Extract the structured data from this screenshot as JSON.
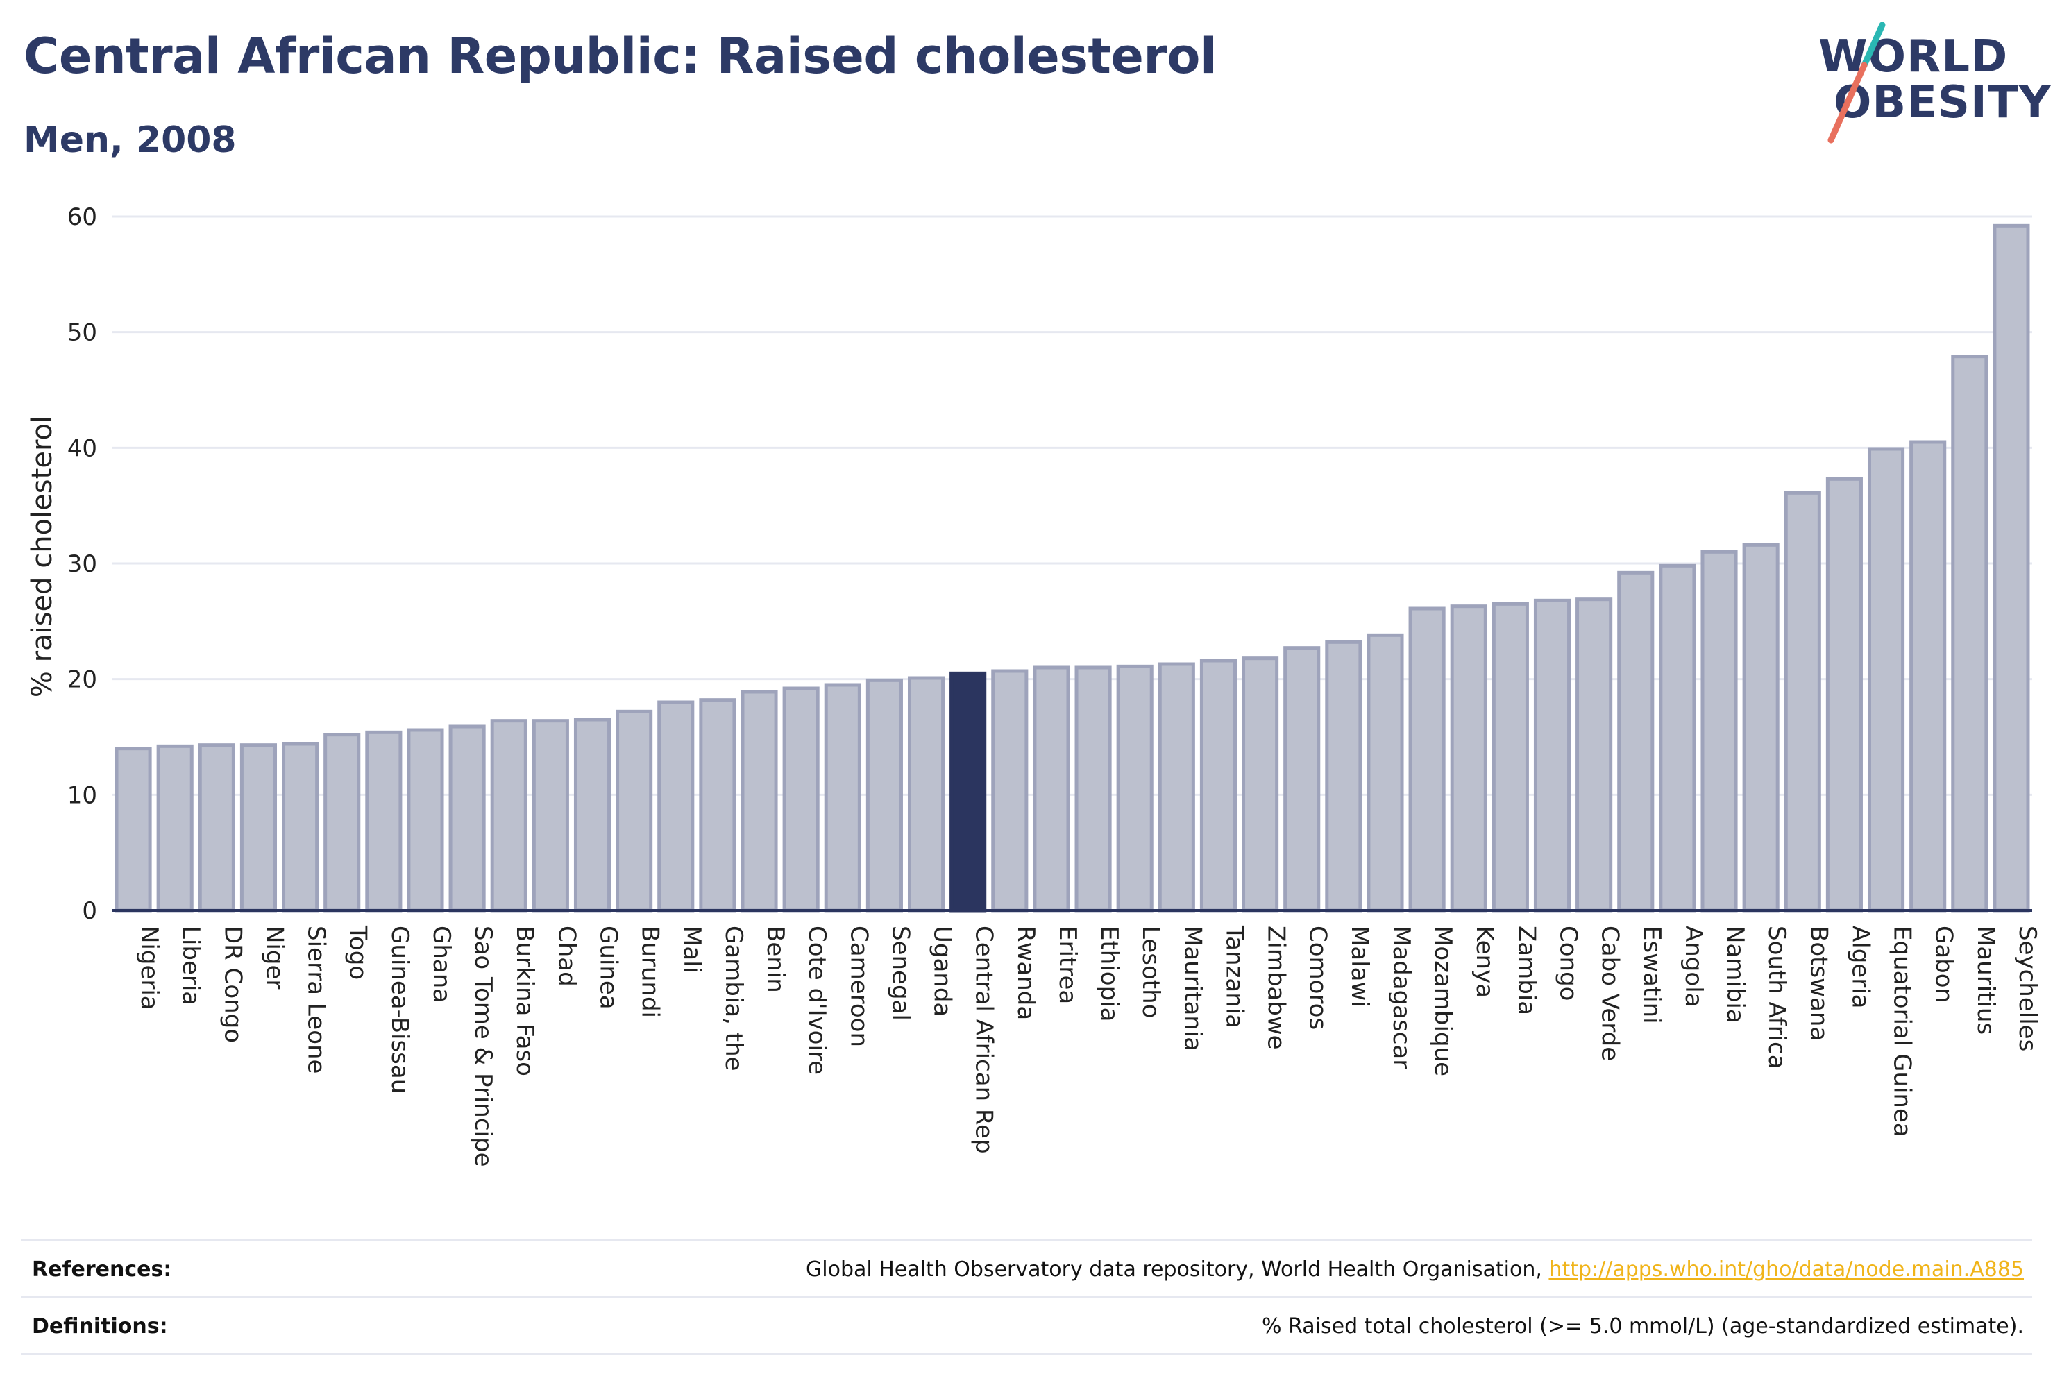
{
  "header": {
    "title": "Central African Republic: Raised cholesterol",
    "subtitle": "Men, 2008"
  },
  "logo": {
    "line1": "WORLD",
    "line2": "OBESITY"
  },
  "colors": {
    "bar": "#bcc0ce",
    "bar_border": "#9ea3bb",
    "highlight": "#2b355f",
    "grid": "#e6e8f0",
    "axis": "#2b355f",
    "link": "#f0b41a",
    "logo_teal": "#2ab7b3",
    "logo_coral": "#e8705e"
  },
  "chart_data": {
    "type": "bar",
    "ylabel": "% raised cholesterol",
    "ylim": [
      0,
      60
    ],
    "yticks": [
      0,
      10,
      20,
      30,
      40,
      50,
      60
    ],
    "grid": true,
    "highlight": "Central African Rep",
    "categories": [
      "Nigeria",
      "Liberia",
      "DR Congo",
      "Niger",
      "Sierra Leone",
      "Togo",
      "Guinea-Bissau",
      "Ghana",
      "Sao Tome & Principe",
      "Burkina Faso",
      "Chad",
      "Guinea",
      "Burundi",
      "Mali",
      "Gambia, the",
      "Benin",
      "Cote d'Ivoire",
      "Cameroon",
      "Senegal",
      "Uganda",
      "Central African Rep",
      "Rwanda",
      "Eritrea",
      "Ethiopia",
      "Lesotho",
      "Mauritania",
      "Tanzania",
      "Zimbabwe",
      "Comoros",
      "Malawi",
      "Madagascar",
      "Mozambique",
      "Kenya",
      "Zambia",
      "Congo",
      "Cabo Verde",
      "Eswatini",
      "Angola",
      "Namibia",
      "South Africa",
      "Botswana",
      "Algeria",
      "Equatorial Guinea",
      "Gabon",
      "Mauritius",
      "Seychelles"
    ],
    "values": [
      14.0,
      14.2,
      14.3,
      14.3,
      14.4,
      15.2,
      15.4,
      15.6,
      15.9,
      16.4,
      16.4,
      16.5,
      17.2,
      18.0,
      18.2,
      18.9,
      19.2,
      19.5,
      19.9,
      20.1,
      20.5,
      20.7,
      21.0,
      21.0,
      21.1,
      21.3,
      21.6,
      21.8,
      22.7,
      23.2,
      23.8,
      26.1,
      26.3,
      26.5,
      26.8,
      26.9,
      29.2,
      29.8,
      31.0,
      31.6,
      36.1,
      37.3,
      39.9,
      40.5,
      47.9,
      59.2
    ]
  },
  "footer": {
    "references_label": "References:",
    "references_text": "Global Health Observatory data repository, World Health Organisation, ",
    "references_link": "http://apps.who.int/gho/data/node.main.A885",
    "definitions_label": "Definitions:",
    "definitions_text": "% Raised total cholesterol (>= 5.0 mmol/L) (age-standardized estimate)."
  }
}
